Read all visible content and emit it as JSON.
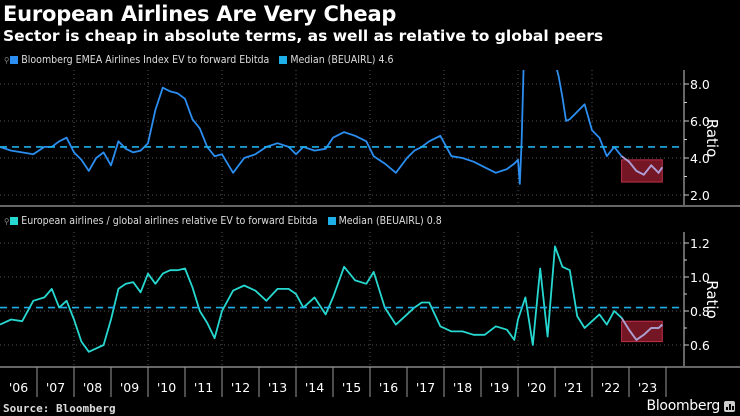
{
  "header": {
    "title": "European Airlines Are Very Cheap",
    "subtitle": "Sector is cheap in absolute terms, as well as relative to global peers"
  },
  "footer": {
    "source": "Source: Bloomberg",
    "brand": "Bloomberg"
  },
  "colors": {
    "background": "#000000",
    "series_top": "#2b8ef0",
    "series_bottom": "#27d8d0",
    "median": "#1eb0e8",
    "highlight_box": "#8a1a2a",
    "highlight_line": "#b59bd0",
    "grid": "#555555"
  },
  "chart_data": [
    {
      "type": "line",
      "panel": "top",
      "legend": [
        {
          "label": "Bloomberg EMEA Airlines Index EV to forward Ebitda",
          "color": "#2b8ef0"
        },
        {
          "label": "Median (BEUAIRL) 4.6",
          "color": "#1eb0e8"
        }
      ],
      "ylabel": "Ratio",
      "yticks": [
        "8.0",
        "6.0",
        "4.0",
        "2.0"
      ],
      "ytick_values": [
        8,
        6,
        4,
        2
      ],
      "ylim": [
        1.5,
        8.7
      ],
      "median": 4.6,
      "highlight_range": [
        2022.8,
        2023.9
      ],
      "grid": true,
      "x": [
        2006.0,
        2006.3,
        2006.6,
        2006.9,
        2007.2,
        2007.4,
        2007.6,
        2007.8,
        2008.0,
        2008.2,
        2008.4,
        2008.6,
        2008.8,
        2009.0,
        2009.2,
        2009.4,
        2009.6,
        2009.8,
        2010.0,
        2010.2,
        2010.4,
        2010.6,
        2010.8,
        2011.0,
        2011.2,
        2011.4,
        2011.6,
        2011.8,
        2012.0,
        2012.3,
        2012.6,
        2012.9,
        2013.2,
        2013.5,
        2013.8,
        2014.0,
        2014.2,
        2014.5,
        2014.8,
        2015.0,
        2015.3,
        2015.6,
        2015.9,
        2016.1,
        2016.4,
        2016.7,
        2017.0,
        2017.2,
        2017.4,
        2017.6,
        2017.9,
        2018.2,
        2018.5,
        2018.8,
        2019.1,
        2019.4,
        2019.7,
        2019.9,
        2020.0,
        2020.05,
        2020.1,
        2020.15,
        2020.25,
        2021.0,
        2021.1,
        2021.2,
        2021.3,
        2021.4,
        2021.6,
        2021.8,
        2022.0,
        2022.2,
        2022.4,
        2022.6,
        2022.8,
        2023.0,
        2023.2,
        2023.4,
        2023.6,
        2023.8,
        2023.9
      ],
      "values": [
        4.6,
        4.4,
        4.3,
        4.2,
        4.6,
        4.6,
        4.9,
        5.1,
        4.3,
        3.9,
        3.3,
        4.0,
        4.3,
        3.6,
        4.9,
        4.5,
        4.3,
        4.4,
        4.8,
        6.6,
        7.8,
        7.6,
        7.5,
        7.2,
        6.1,
        5.6,
        4.6,
        4.1,
        4.2,
        3.2,
        4.0,
        4.2,
        4.6,
        4.8,
        4.6,
        4.2,
        4.6,
        4.4,
        4.5,
        5.1,
        5.4,
        5.2,
        4.9,
        4.1,
        3.7,
        3.2,
        4.0,
        4.4,
        4.6,
        4.9,
        5.2,
        4.1,
        4.0,
        3.8,
        3.5,
        3.2,
        3.4,
        3.7,
        3.9,
        2.6,
        5.0,
        8.9,
        9.2,
        9.2,
        8.4,
        7.3,
        6.0,
        6.1,
        6.5,
        6.9,
        5.5,
        5.1,
        4.1,
        4.6,
        4.1,
        3.8,
        3.3,
        3.1,
        3.6,
        3.2,
        3.5
      ]
    },
    {
      "type": "line",
      "panel": "bottom",
      "legend": [
        {
          "label": "European airlines / global airlines relative EV to forward Ebitda",
          "color": "#27d8d0"
        },
        {
          "label": "Median (BEUAIRL) 0.8",
          "color": "#1eb0e8"
        }
      ],
      "ylabel": "Ratio",
      "yticks": [
        "1.2",
        "1.0",
        "0.8",
        "0.6"
      ],
      "ytick_values": [
        1.2,
        1.0,
        0.8,
        0.6
      ],
      "ylim": [
        0.48,
        1.26
      ],
      "median": 0.82,
      "highlight_range": [
        2022.8,
        2023.9
      ],
      "grid": true,
      "x": [
        2006.0,
        2006.3,
        2006.6,
        2006.9,
        2007.2,
        2007.4,
        2007.6,
        2007.8,
        2008.0,
        2008.2,
        2008.4,
        2008.6,
        2008.8,
        2009.0,
        2009.2,
        2009.4,
        2009.6,
        2009.8,
        2010.0,
        2010.2,
        2010.4,
        2010.6,
        2010.8,
        2011.0,
        2011.2,
        2011.4,
        2011.6,
        2011.8,
        2012.0,
        2012.3,
        2012.6,
        2012.9,
        2013.2,
        2013.5,
        2013.8,
        2014.0,
        2014.2,
        2014.5,
        2014.8,
        2015.0,
        2015.3,
        2015.6,
        2015.9,
        2016.1,
        2016.4,
        2016.7,
        2017.0,
        2017.2,
        2017.4,
        2017.6,
        2017.9,
        2018.2,
        2018.5,
        2018.8,
        2019.1,
        2019.4,
        2019.7,
        2019.9,
        2020.0,
        2020.2,
        2020.4,
        2020.6,
        2020.8,
        2021.0,
        2021.2,
        2021.4,
        2021.6,
        2021.8,
        2022.0,
        2022.2,
        2022.4,
        2022.6,
        2022.8,
        2023.0,
        2023.2,
        2023.4,
        2023.6,
        2023.8,
        2023.9
      ],
      "values": [
        0.72,
        0.75,
        0.74,
        0.86,
        0.88,
        0.93,
        0.82,
        0.86,
        0.75,
        0.62,
        0.56,
        0.58,
        0.6,
        0.75,
        0.93,
        0.96,
        0.97,
        0.91,
        1.02,
        0.96,
        1.02,
        1.04,
        1.04,
        1.05,
        0.94,
        0.8,
        0.73,
        0.64,
        0.8,
        0.92,
        0.95,
        0.92,
        0.86,
        0.93,
        0.93,
        0.9,
        0.82,
        0.88,
        0.78,
        0.88,
        1.06,
        0.98,
        0.96,
        1.03,
        0.82,
        0.72,
        0.78,
        0.82,
        0.85,
        0.85,
        0.71,
        0.68,
        0.68,
        0.66,
        0.66,
        0.71,
        0.69,
        0.63,
        0.75,
        0.88,
        0.6,
        1.05,
        0.65,
        1.18,
        1.06,
        1.04,
        0.77,
        0.7,
        0.74,
        0.78,
        0.72,
        0.8,
        0.76,
        0.69,
        0.63,
        0.66,
        0.7,
        0.7,
        0.72
      ]
    }
  ],
  "xaxis": {
    "tick_labels": [
      "'06",
      "'07",
      "'08",
      "'09",
      "'10",
      "'11",
      "'12",
      "'13",
      "'14",
      "'15",
      "'16",
      "'17",
      "'18",
      "'19",
      "'20",
      "'21",
      "'22",
      "'23"
    ],
    "start_year": 2006,
    "end_year": 2024
  }
}
